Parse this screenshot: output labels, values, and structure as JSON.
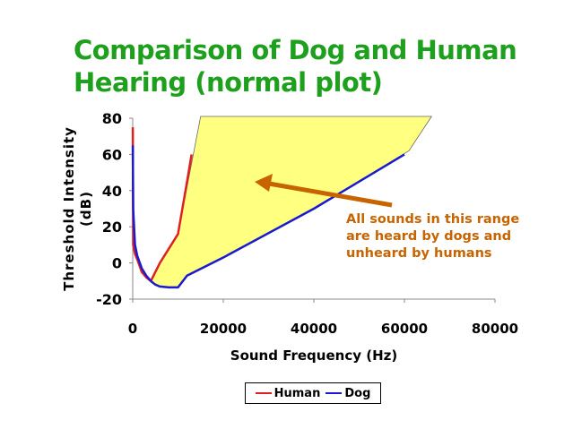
{
  "chart_data": {
    "type": "line",
    "title": "Comparison of Dog and Human Hearing (normal plot)",
    "xlabel": "Sound Frequency (Hz)",
    "ylabel": "Threshold Intensity (dB)",
    "xlim": [
      0,
      80000
    ],
    "ylim": [
      -20,
      80
    ],
    "xticks": [
      0,
      20000,
      40000,
      60000,
      80000
    ],
    "yticks": [
      -20,
      0,
      20,
      40,
      60,
      80
    ],
    "grid": false,
    "legend": "bottom",
    "series": [
      {
        "name": "Human",
        "color": "#e02020",
        "x": [
          20,
          100,
          500,
          1000,
          2000,
          3000,
          4000,
          5000,
          6000,
          8000,
          10000,
          12000,
          13000
        ],
        "y": [
          75,
          10,
          5,
          2,
          -5,
          -8,
          -10,
          -5,
          0,
          8,
          16,
          45,
          60
        ]
      },
      {
        "name": "Dog",
        "color": "#1a1ad0",
        "x": [
          20,
          100,
          500,
          1000,
          2000,
          3000,
          4000,
          5000,
          6000,
          8000,
          10000,
          12000,
          20000,
          40000,
          60000
        ],
        "y": [
          65,
          30,
          10,
          4,
          -3,
          -7,
          -10,
          -12,
          -13,
          -13.5,
          -13.5,
          -7,
          3,
          30,
          60
        ]
      }
    ],
    "shaded_region": {
      "color": "#ffff80",
      "x": [
        4000,
        6000,
        8000,
        10000,
        15000,
        66000,
        61000,
        40000,
        20000,
        12000,
        10000,
        8000,
        6000
      ],
      "y": [
        -10,
        0,
        8,
        16,
        81,
        81,
        62,
        30,
        3,
        -7,
        -13.5,
        -13.5,
        -13
      ]
    },
    "annotation": [
      "All sounds in this range",
      "are heard by dogs and",
      "unheard by humans"
    ]
  }
}
